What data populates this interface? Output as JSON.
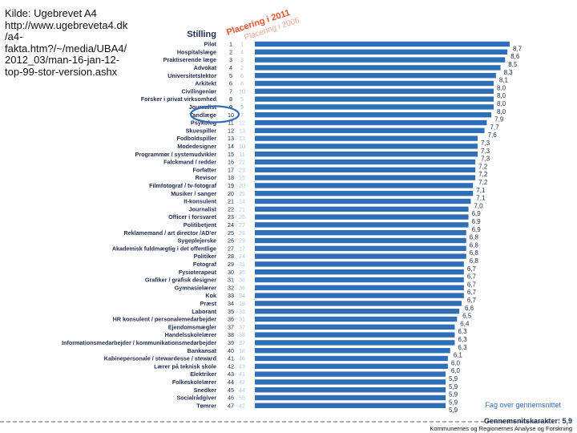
{
  "source_note": "Kilde: Ugebrevet A4\nhttp://www.ugebreveta4.dk\n/a4-\nfakta.htm?/~/media/UBA4/\n2012_03/man-16-jan-12-\ntop-99-stor-version.ashx",
  "colors": {
    "bar": "#2f6fb8",
    "dark": "#1f2b4f",
    "light": "#a7c6e8",
    "circle": "#2f6fb8"
  },
  "chart_data": {
    "type": "bar",
    "orientation": "horizontal",
    "headers": {
      "category": "Stilling",
      "rank_2011": "Placering i 2011",
      "rank_2006": "Placering i 2006"
    },
    "legend_label": "Fag over gennemsnittet",
    "average_label": "Gennemsnitskarakter: 5,9",
    "credit": "Kommunernes og Regionernes Analyse og Forskning",
    "highlighted": "Tandlæge",
    "xlim": [
      0,
      6.7
    ],
    "rows": [
      {
        "label": "Pilot",
        "r2011": "1",
        "r2006": "1",
        "value": 8.7,
        "value_text": "8,7"
      },
      {
        "label": "Hospitalslæge",
        "r2011": "2",
        "r2006": "4",
        "value": 8.6,
        "value_text": "8,6"
      },
      {
        "label": "Praktiserende læge",
        "r2011": "3",
        "r2006": "3",
        "value": 8.5,
        "value_text": "8,5"
      },
      {
        "label": "Advokat",
        "r2011": "4",
        "r2006": "2",
        "value": 8.3,
        "value_text": "8,3"
      },
      {
        "label": "Universitetslektor",
        "r2011": "5",
        "r2006": "6",
        "value": 8.1,
        "value_text": "8,1"
      },
      {
        "label": "Arkitekt",
        "r2011": "6",
        "r2006": "8",
        "value": 8.0,
        "value_text": "8,0"
      },
      {
        "label": "Civilingeniør",
        "r2011": "7",
        "r2006": "10",
        "value": 8.0,
        "value_text": "8,0"
      },
      {
        "label": "Forsker i privat virksomhed",
        "r2011": "8",
        "r2006": "5",
        "value": 8.0,
        "value_text": "8,0"
      },
      {
        "label": "Journalist",
        "r2011": "9",
        "r2006": "9",
        "value": 8.0,
        "value_text": "8,0"
      },
      {
        "label": "Tandlæge",
        "r2011": "10",
        "r2006": "7",
        "value": 7.9,
        "value_text": "7,9"
      },
      {
        "label": "Psykolog",
        "r2011": "11",
        "r2006": "12",
        "value": 7.7,
        "value_text": "7,7"
      },
      {
        "label": "Skuespiller",
        "r2011": "12",
        "r2006": "13",
        "value": 7.6,
        "value_text": "7,6"
      },
      {
        "label": "Fodboldspiller",
        "r2011": "13",
        "r2006": "13",
        "value": 7.3,
        "value_text": "7,3"
      },
      {
        "label": "Modedesigner",
        "r2011": "14",
        "r2006": "10",
        "value": 7.3,
        "value_text": "7,3"
      },
      {
        "label": "Programmør / systemudvikler",
        "r2011": "15",
        "r2006": "11",
        "value": 7.3,
        "value_text": "7,3"
      },
      {
        "label": "Falckmand / redder",
        "r2011": "16",
        "r2006": "22",
        "value": 7.2,
        "value_text": "7,2"
      },
      {
        "label": "Forfatter",
        "r2011": "17",
        "r2006": "23",
        "value": 7.2,
        "value_text": "7,2"
      },
      {
        "label": "Revisor",
        "r2011": "18",
        "r2006": "15",
        "value": 7.2,
        "value_text": "7,2"
      },
      {
        "label": "Filmfotograf / tv-fotograf",
        "r2011": "19",
        "r2006": "20",
        "value": 7.1,
        "value_text": "7,1"
      },
      {
        "label": "Musiker / sanger",
        "r2011": "20",
        "r2006": "25",
        "value": 7.1,
        "value_text": "7,1"
      },
      {
        "label": "It-konsulent",
        "r2011": "21",
        "r2006": "14",
        "value": 7.0,
        "value_text": "7,0"
      },
      {
        "label": "Journalist",
        "r2011": "22",
        "r2006": "21",
        "value": 6.9,
        "value_text": "6,9"
      },
      {
        "label": "Officer i forsvaret",
        "r2011": "23",
        "r2006": "26",
        "value": 6.9,
        "value_text": "6,9"
      },
      {
        "label": "Politibetjent",
        "r2011": "24",
        "r2006": "27",
        "value": 6.9,
        "value_text": "6,9"
      },
      {
        "label": "Reklamemand / art director /AD'er",
        "r2011": "25",
        "r2006": "28",
        "value": 6.8,
        "value_text": "6,8"
      },
      {
        "label": "Sygeplejerske",
        "r2011": "26",
        "r2006": "29",
        "value": 6.8,
        "value_text": "6,8"
      },
      {
        "label": "Akademisk fuldmægtig i det offentlige",
        "r2011": "27",
        "r2006": "17",
        "value": 6.8,
        "value_text": "6,8"
      },
      {
        "label": "Politiker",
        "r2011": "28",
        "r2006": "24",
        "value": 6.8,
        "value_text": "6,8"
      },
      {
        "label": "Fotograf",
        "r2011": "29",
        "r2006": "31",
        "value": 6.7,
        "value_text": "6,7"
      },
      {
        "label": "Fysioterapeut",
        "r2011": "30",
        "r2006": "35",
        "value": 6.7,
        "value_text": "6,7"
      },
      {
        "label": "Grafiker / grafisk designer",
        "r2011": "31",
        "r2006": "38",
        "value": 6.7,
        "value_text": "6,7"
      },
      {
        "label": "Gymnasielærer",
        "r2011": "32",
        "r2006": "36",
        "value": 6.7,
        "value_text": "6,7"
      },
      {
        "label": "Kok",
        "r2011": "33",
        "r2006": "34",
        "value": 6.7,
        "value_text": "6,7"
      },
      {
        "label": "Præst",
        "r2011": "34",
        "r2006": "19",
        "value": 6.6,
        "value_text": "6,6"
      },
      {
        "label": "Laborant",
        "r2011": "35",
        "r2006": "33",
        "value": 6.5,
        "value_text": "6,5"
      },
      {
        "label": "HR konsulent / personalemedarbejder",
        "r2011": "36",
        "r2006": "31",
        "value": 6.4,
        "value_text": "6,4"
      },
      {
        "label": "Ejendomsmægler",
        "r2011": "37",
        "r2006": "37",
        "value": 6.3,
        "value_text": "6,3"
      },
      {
        "label": "Handelsskolelærer",
        "r2011": "38",
        "r2006": "38",
        "value": 6.3,
        "value_text": "6,3"
      },
      {
        "label": "Informationsmedarbejder / kommunikationsmedarbejder",
        "r2011": "39",
        "r2006": "37",
        "value": 6.3,
        "value_text": "6,3"
      },
      {
        "label": "Bankansat",
        "r2011": "40",
        "r2006": "18",
        "value": 6.1,
        "value_text": "6,1"
      },
      {
        "label": "Kabinepersonale / stewardesse / steward",
        "r2011": "41",
        "r2006": "46",
        "value": 6.0,
        "value_text": "6,0"
      },
      {
        "label": "Lærer på teknisk skole",
        "r2011": "42",
        "r2006": "43",
        "value": 6.0,
        "value_text": "6,0"
      },
      {
        "label": "Elektriker",
        "r2011": "43",
        "r2006": "41",
        "value": 5.9,
        "value_text": "5,9"
      },
      {
        "label": "Folkeskolelærer",
        "r2011": "44",
        "r2006": "42",
        "value": 5.9,
        "value_text": "5,9"
      },
      {
        "label": "Snedker",
        "r2011": "45",
        "r2006": "44",
        "value": 5.9,
        "value_text": "5,9"
      },
      {
        "label": "Socialrådgiver",
        "r2011": "46",
        "r2006": "55",
        "value": 5.9,
        "value_text": "5,9"
      },
      {
        "label": "Tømrer",
        "r2011": "47",
        "r2006": "42",
        "value": 5.9,
        "value_text": "5,9"
      }
    ]
  }
}
